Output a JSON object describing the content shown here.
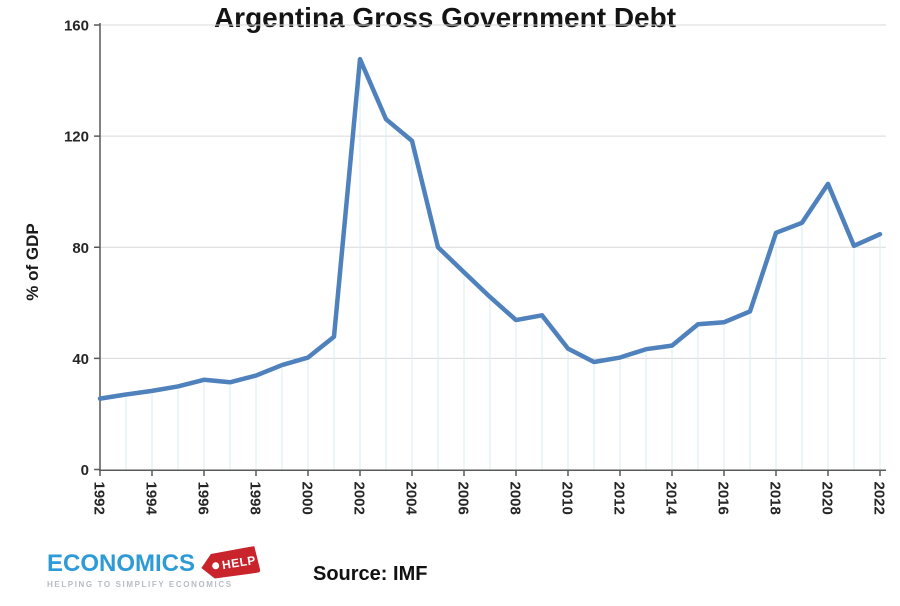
{
  "title": "Argentina Gross Government Debt",
  "source_note": "Source: IMF",
  "logo": {
    "brand": "ECONOMICS",
    "badge": "HELP",
    "tagline": "HELPING TO SIMPLIFY ECONOMICS",
    "brand_color": "#2E9BD6",
    "badge_color": "#C9232C"
  },
  "chart_data": {
    "type": "line",
    "title": "Argentina Gross Government Debt",
    "xlabel": "",
    "ylabel": "% of GDP",
    "series_name": "Argentina gross government debt (% of GDP)",
    "x": [
      1992,
      1993,
      1994,
      1995,
      1996,
      1997,
      1998,
      1999,
      2000,
      2001,
      2002,
      2003,
      2004,
      2005,
      2006,
      2007,
      2008,
      2009,
      2010,
      2011,
      2012,
      2013,
      2014,
      2015,
      2016,
      2017,
      2018,
      2019,
      2020,
      2021,
      2022
    ],
    "values": [
      25.5,
      27,
      28.3,
      29.9,
      32.3,
      31.4,
      33.8,
      37.6,
      40.3,
      47.8,
      147.7,
      126.1,
      118.3,
      80,
      71,
      62.1,
      53.8,
      55.5,
      43.5,
      38.7,
      40.3,
      43.3,
      44.6,
      52.3,
      53,
      56.9,
      85.2,
      88.8,
      102.8,
      80.5,
      84.7
    ],
    "ylim": [
      0,
      160
    ],
    "y_ticks": [
      0,
      40,
      80,
      120,
      160
    ],
    "x_tick_step": 2,
    "line_color": "#4F81BD",
    "h_gridline_color": "#D9D9D9",
    "v_gridline_color": "#DAEEF3",
    "axis_color": "#595959",
    "grid": "horizontal major gridlines; light vertical year lines below curve only",
    "legend_position": "none"
  }
}
